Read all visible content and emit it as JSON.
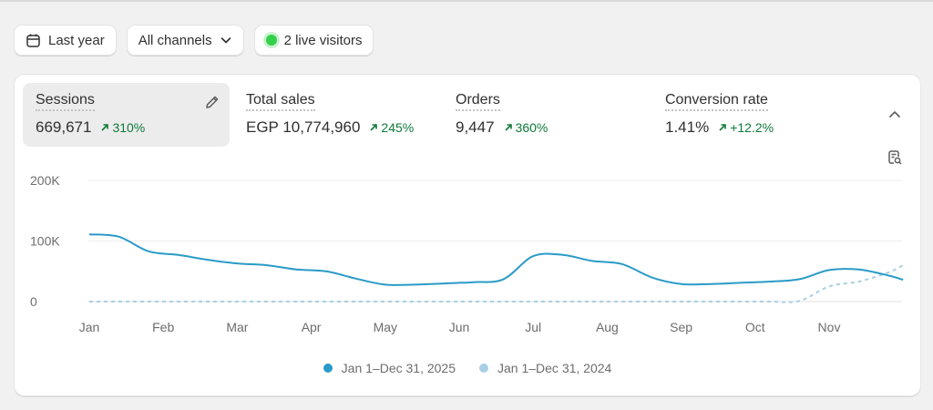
{
  "filters": {
    "date_label": "Last year",
    "channel_label": "All channels",
    "live_label": "2 live visitors"
  },
  "metrics": [
    {
      "label": "Sessions",
      "value": "669,671",
      "change": "310%",
      "active": true
    },
    {
      "label": "Total sales",
      "value": "EGP 10,774,960",
      "change": "245%"
    },
    {
      "label": "Orders",
      "value": "9,447",
      "change": "360%"
    },
    {
      "label": "Conversion rate",
      "value": "1.41%",
      "change": "+12.2%"
    }
  ],
  "colors": {
    "current_series": "#2a9bc7",
    "previous_series": "#a8cfe5",
    "positive_change": "#0f7a3a",
    "live_dot": "#33d04b"
  },
  "icons": [
    "calendar-icon",
    "chevron-down-icon",
    "pencil-icon",
    "chevron-up-icon",
    "report-search-icon",
    "arrow-up-right-icon"
  ],
  "chart_data": {
    "type": "line",
    "title": "",
    "xlabel": "",
    "ylabel": "",
    "x_ticks": [
      "Jan",
      "Feb",
      "Mar",
      "Apr",
      "May",
      "Jun",
      "Jul",
      "Aug",
      "Sep",
      "Oct",
      "Nov"
    ],
    "y_ticks": [
      "200K",
      "100K",
      "0"
    ],
    "ylim": [
      0,
      200000
    ],
    "grid": true,
    "legend_position": "bottom-center",
    "x": [
      0,
      0.4,
      0.8,
      1.2,
      1.6,
      2.0,
      2.4,
      2.8,
      3.2,
      3.6,
      4.0,
      4.4,
      4.8,
      5.2,
      5.6,
      6.0,
      6.4,
      6.8,
      7.2,
      7.6,
      8.0,
      8.4,
      8.8,
      9.2,
      9.6,
      10.0,
      10.4,
      10.8,
      11.0
    ],
    "series": [
      {
        "name": "Jan 1–Dec 31, 2025",
        "style": "solid",
        "values": [
          111000,
          107000,
          83000,
          77000,
          69000,
          63000,
          60000,
          53000,
          50000,
          38000,
          28000,
          28000,
          30000,
          32000,
          37000,
          75000,
          77000,
          67000,
          62000,
          40000,
          29000,
          29000,
          31000,
          33000,
          37000,
          52000,
          53000,
          43000,
          36000
        ]
      },
      {
        "name": "Jan 1–Dec 31, 2024",
        "style": "dashed",
        "values": [
          0,
          0,
          0,
          0,
          0,
          0,
          0,
          0,
          0,
          0,
          0,
          0,
          0,
          0,
          0,
          0,
          0,
          0,
          0,
          0,
          0,
          0,
          0,
          0,
          1000,
          25000,
          33000,
          48000,
          60000
        ]
      }
    ]
  }
}
